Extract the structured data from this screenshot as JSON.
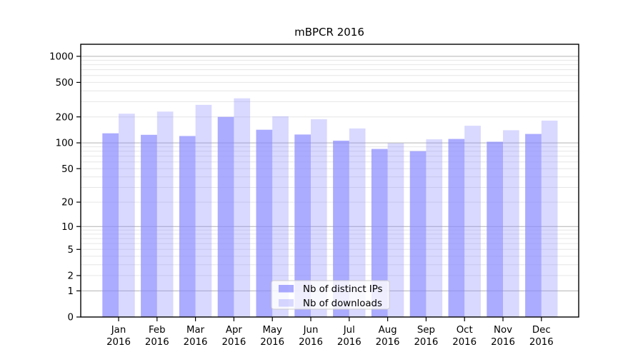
{
  "title": "mBPCR 2016",
  "colors": {
    "bar_base": "#8888ff",
    "ips_fill": "rgba(136,136,255,0.7)",
    "downloads_fill": "rgba(136,136,255,0.32)",
    "grid_major": "#b3b3b3",
    "grid_minor": "#e6e6e6",
    "axis": "#000000",
    "legend_border": "#cccccc",
    "legend_bg": "rgba(255,255,255,0.8)"
  },
  "legend": {
    "items": [
      {
        "label": "Nb of distinct IPs",
        "fill": "rgba(136,136,255,0.7)"
      },
      {
        "label": "Nb of downloads",
        "fill": "rgba(136,136,255,0.32)"
      }
    ],
    "position": "lower center"
  },
  "chart_data": {
    "type": "bar",
    "title": "mBPCR 2016",
    "yscale": "log1p",
    "grid": "on",
    "legend_position": "lower center",
    "xlabel": "",
    "ylabel": "",
    "categories": [
      "Jan 2016",
      "Feb 2016",
      "Mar 2016",
      "Apr 2016",
      "May 2016",
      "Jun 2016",
      "Jul 2016",
      "Aug 2016",
      "Sep 2016",
      "Oct 2016",
      "Nov 2016",
      "Dec 2016"
    ],
    "series": [
      {
        "name": "Nb of distinct IPs",
        "fill": "rgba(136,136,255,0.7)",
        "values": [
          129,
          124,
          120,
          200,
          142,
          125,
          106,
          85,
          80,
          111,
          103,
          127
        ]
      },
      {
        "name": "Nb of downloads",
        "fill": "rgba(136,136,255,0.32)",
        "values": [
          218,
          230,
          276,
          328,
          203,
          188,
          147,
          99,
          110,
          158,
          140,
          181
        ]
      }
    ],
    "yticks": [
      0,
      1,
      2,
      5,
      10,
      20,
      50,
      100,
      200,
      500,
      1000
    ],
    "ylim": [
      0,
      1377
    ]
  }
}
